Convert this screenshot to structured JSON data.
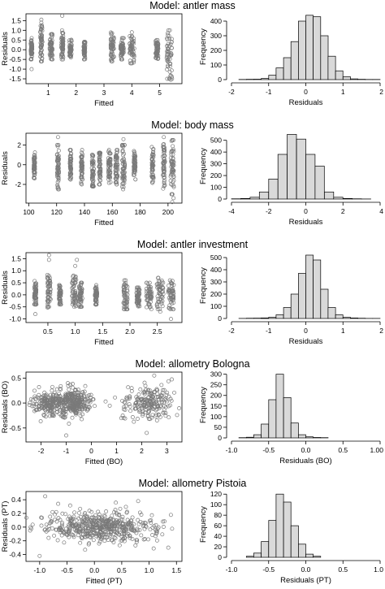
{
  "chart_data": [
    {
      "title": "Model: antler mass",
      "scatter": {
        "type": "scatter",
        "xlabel": "Fitted",
        "ylabel": "Residuals",
        "xlim": [
          0.2,
          5.8
        ],
        "ylim": [
          -1.75,
          1.85
        ],
        "xticks": [
          1,
          2,
          3,
          4,
          5
        ],
        "yticks": [
          -1.5,
          -1.0,
          -0.5,
          0.0,
          0.5,
          1.0,
          1.5
        ],
        "ytick_labels": [
          "-1.5",
          "-1.0",
          "-0.5",
          "0.0",
          "0.5",
          "1.0",
          "1.5"
        ],
        "clusters": [
          {
            "x": 0.4,
            "spread": 0.03,
            "ymin": -0.5,
            "ymax": 0.6
          },
          {
            "x": 0.75,
            "spread": 0.04,
            "ymin": -0.6,
            "ymax": 1.3
          },
          {
            "x": 1.1,
            "spread": 0.05,
            "ymin": -0.5,
            "ymax": 0.8
          },
          {
            "x": 1.5,
            "spread": 0.04,
            "ymin": -0.5,
            "ymax": 1.0
          },
          {
            "x": 1.8,
            "spread": 0.04,
            "ymin": -0.4,
            "ymax": 0.6
          },
          {
            "x": 2.3,
            "spread": 0.03,
            "ymin": -0.5,
            "ymax": 0.4
          },
          {
            "x": 3.3,
            "spread": 0.06,
            "ymin": -0.6,
            "ymax": 0.9
          },
          {
            "x": 3.65,
            "spread": 0.06,
            "ymin": -0.5,
            "ymax": 0.6
          },
          {
            "x": 4.0,
            "spread": 0.09,
            "ymin": -0.7,
            "ymax": 0.7
          },
          {
            "x": 4.9,
            "spread": 0.05,
            "ymin": -0.5,
            "ymax": 0.5
          },
          {
            "x": 5.35,
            "spread": 0.1,
            "ymin": -1.5,
            "ymax": 1.0
          }
        ],
        "outliers": [
          [
            1.5,
            1.75
          ],
          [
            0.75,
            1.4
          ],
          [
            0.75,
            1.55
          ],
          [
            5.4,
            -1.55
          ],
          [
            4.0,
            0.9
          ],
          [
            0.4,
            -1.0
          ]
        ]
      },
      "histogram": {
        "type": "bar",
        "xlabel": "Residuals",
        "ylabel": "Frequency",
        "xlim": [
          -2,
          2
        ],
        "ylim": [
          0,
          450
        ],
        "xticks": [
          -2,
          -1,
          0,
          1,
          2
        ],
        "yticks": [
          0,
          100,
          200,
          300,
          400
        ],
        "bin_start": -2.0,
        "bin_width": 0.2,
        "values": [
          0,
          1,
          2,
          3,
          8,
          30,
          80,
          150,
          260,
          400,
          440,
          430,
          300,
          160,
          60,
          20,
          5,
          2,
          1,
          1
        ]
      }
    },
    {
      "title": "Model: body mass",
      "scatter": {
        "type": "scatter",
        "xlabel": "Fitted",
        "ylabel": "Residuals",
        "xlim": [
          98,
          210
        ],
        "ylim": [
          -3.9,
          3.2
        ],
        "xticks": [
          100,
          120,
          140,
          160,
          180,
          200
        ],
        "yticks": [
          -2,
          0,
          2
        ],
        "ytick_labels": [
          "-2",
          "0",
          "2"
        ],
        "clusters": [
          {
            "x": 104,
            "spread": 0.5,
            "ymin": -1.5,
            "ymax": 1.5
          },
          {
            "x": 121,
            "spread": 0.7,
            "ymin": -2.5,
            "ymax": 2.0
          },
          {
            "x": 130,
            "spread": 0.5,
            "ymin": -1.5,
            "ymax": 1.5
          },
          {
            "x": 138,
            "spread": 0.6,
            "ymin": -2.0,
            "ymax": 1.5
          },
          {
            "x": 146,
            "spread": 0.7,
            "ymin": -2.2,
            "ymax": 1.0
          },
          {
            "x": 151,
            "spread": 0.6,
            "ymin": -2.0,
            "ymax": 1.2
          },
          {
            "x": 158,
            "spread": 0.9,
            "ymin": -2.0,
            "ymax": 1.5
          },
          {
            "x": 163,
            "spread": 0.8,
            "ymin": -2.0,
            "ymax": 1.5
          },
          {
            "x": 168,
            "spread": 1.0,
            "ymin": -2.5,
            "ymax": 2.0
          },
          {
            "x": 176,
            "spread": 0.7,
            "ymin": -1.5,
            "ymax": 1.5
          },
          {
            "x": 189,
            "spread": 0.7,
            "ymin": -2.0,
            "ymax": 1.8
          },
          {
            "x": 197,
            "spread": 0.8,
            "ymin": -2.5,
            "ymax": 2.5
          },
          {
            "x": 203,
            "spread": 1.2,
            "ymin": -3.0,
            "ymax": 2.5
          }
        ],
        "outliers": [
          [
            121,
            2.8
          ],
          [
            203,
            -3.8
          ],
          [
            204,
            -3.4
          ],
          [
            168,
            2.6
          ],
          [
            197,
            2.8
          ]
        ]
      },
      "histogram": {
        "type": "bar",
        "xlabel": "Residuals",
        "ylabel": "Frequency",
        "xlim": [
          -4,
          4
        ],
        "ylim": [
          0,
          560
        ],
        "xticks": [
          -4,
          -2,
          0,
          2,
          4
        ],
        "yticks": [
          0,
          100,
          200,
          300,
          400,
          500
        ],
        "bin_start": -4.0,
        "bin_width": 0.5,
        "values": [
          2,
          5,
          15,
          60,
          170,
          380,
          550,
          510,
          380,
          280,
          60,
          15,
          5,
          2,
          1,
          0
        ]
      }
    },
    {
      "title": "Model: antler investment",
      "scatter": {
        "type": "scatter",
        "xlabel": "Fitted",
        "ylabel": "Residuals",
        "xlim": [
          0.1,
          2.95
        ],
        "ylim": [
          -1.15,
          1.75
        ],
        "xticks": [
          0.5,
          1.0,
          1.5,
          2.0,
          2.5
        ],
        "yticks": [
          -1.0,
          -0.5,
          0.0,
          0.5,
          1.0,
          1.5
        ],
        "ytick_labels": [
          "-1.0",
          "-0.5",
          "0.0",
          "0.5",
          "1.0",
          "1.5"
        ],
        "clusters": [
          {
            "x": 0.27,
            "spread": 0.02,
            "ymin": -0.4,
            "ymax": 0.6
          },
          {
            "x": 0.52,
            "spread": 0.03,
            "ymin": -0.6,
            "ymax": 0.9
          },
          {
            "x": 0.72,
            "spread": 0.02,
            "ymin": -0.4,
            "ymax": 0.4
          },
          {
            "x": 0.98,
            "spread": 0.04,
            "ymin": -0.5,
            "ymax": 0.8
          },
          {
            "x": 1.1,
            "spread": 0.03,
            "ymin": -0.5,
            "ymax": 0.5
          },
          {
            "x": 1.38,
            "spread": 0.02,
            "ymin": -0.4,
            "ymax": 0.4
          },
          {
            "x": 1.92,
            "spread": 0.04,
            "ymin": -0.6,
            "ymax": 0.6
          },
          {
            "x": 2.15,
            "spread": 0.03,
            "ymin": -0.5,
            "ymax": 0.3
          },
          {
            "x": 2.35,
            "spread": 0.05,
            "ymin": -0.6,
            "ymax": 0.5
          },
          {
            "x": 2.55,
            "spread": 0.06,
            "ymin": -0.7,
            "ymax": 0.7
          },
          {
            "x": 2.75,
            "spread": 0.05,
            "ymin": -0.6,
            "ymax": 0.6
          }
        ],
        "outliers": [
          [
            0.52,
            1.65
          ],
          [
            0.52,
            1.45
          ],
          [
            1.03,
            1.45
          ],
          [
            1.0,
            1.2
          ],
          [
            0.27,
            -0.8
          ],
          [
            2.75,
            -1.0
          ]
        ]
      },
      "histogram": {
        "type": "bar",
        "xlabel": "Residuals",
        "ylabel": "Frequency",
        "xlim": [
          -2,
          2
        ],
        "ylim": [
          0,
          540
        ],
        "xticks": [
          -2,
          -1,
          0,
          1,
          2
        ],
        "yticks": [
          0,
          100,
          200,
          300,
          400,
          500
        ],
        "bin_start": -2.0,
        "bin_width": 0.2,
        "values": [
          0,
          1,
          2,
          3,
          5,
          10,
          30,
          90,
          200,
          370,
          520,
          480,
          240,
          90,
          30,
          10,
          4,
          2,
          1,
          1
        ]
      }
    },
    {
      "title": "Model: allometry Bologna",
      "scatter": {
        "type": "scatter",
        "xlabel": "Fitted (BO)",
        "ylabel": "Residuals (BO)",
        "xlim": [
          -2.6,
          3.6
        ],
        "ylim": [
          -0.78,
          0.62
        ],
        "xticks": [
          -2,
          -1,
          0,
          1,
          2,
          3
        ],
        "yticks": [
          -0.5,
          0.0,
          0.5
        ],
        "ytick_labels": [
          "-0.5",
          "0.0",
          "0.5"
        ],
        "blobs": [
          {
            "cx": -1.75,
            "cy": 0.0,
            "sx": 0.3,
            "sy": 0.12,
            "n": 160
          },
          {
            "cx": -0.75,
            "cy": 0.0,
            "sx": 0.35,
            "sy": 0.14,
            "n": 300
          },
          {
            "cx": 2.3,
            "cy": 0.0,
            "sx": 0.5,
            "sy": 0.17,
            "n": 200
          }
        ],
        "outliers": [
          [
            -1.0,
            -0.65
          ],
          [
            2.5,
            0.55
          ],
          [
            2.2,
            -0.6
          ],
          [
            1.6,
            0.3
          ]
        ]
      },
      "histogram": {
        "type": "bar",
        "xlabel": "Residuals (BO)",
        "ylabel": "Frequency",
        "xlim": [
          -1.0,
          1.0
        ],
        "ylim": [
          0,
          310
        ],
        "xticks": [
          -1.0,
          -0.5,
          0.0,
          0.5,
          1.0
        ],
        "yticks": [
          0,
          50,
          100,
          150,
          200,
          250,
          300
        ],
        "xtick_labels": [
          "-1.0",
          "-0.5",
          "0.0",
          "0.5",
          "1.00"
        ],
        "bin_start": -1.0,
        "bin_width": 0.1,
        "values": [
          0,
          1,
          3,
          15,
          65,
          180,
          300,
          190,
          70,
          15,
          5,
          2,
          1,
          0,
          0,
          0,
          0,
          0,
          0,
          0
        ]
      }
    },
    {
      "title": "Model: allometry Pistoia",
      "scatter": {
        "type": "scatter",
        "xlabel": "Fitted (PT)",
        "ylabel": "Residuals (PT)",
        "xlim": [
          -1.25,
          1.6
        ],
        "ylim": [
          -0.5,
          0.52
        ],
        "xticks": [
          -1.0,
          -0.5,
          0.0,
          0.5,
          1.0,
          1.5
        ],
        "yticks": [
          -0.4,
          -0.2,
          0.0,
          0.2,
          0.4
        ],
        "ytick_labels": [
          "-0.4",
          "-0.2",
          "0.0",
          "0.2",
          "0.4"
        ],
        "blobs": [
          {
            "cx": 0.1,
            "cy": 0.0,
            "sx": 0.5,
            "sy": 0.11,
            "n": 520
          }
        ],
        "outliers": [
          [
            -0.9,
            0.45
          ],
          [
            1.35,
            -0.3
          ],
          [
            -1.0,
            -0.42
          ],
          [
            0.8,
            0.38
          ]
        ]
      },
      "histogram": {
        "type": "bar",
        "xlabel": "Residuals (PT)",
        "ylabel": "Frequency",
        "xlim": [
          -1.0,
          1.0
        ],
        "ylim": [
          0,
          125
        ],
        "xticks": [
          -1.0,
          -0.5,
          0.0,
          0.5,
          1.0
        ],
        "yticks": [
          0,
          20,
          40,
          60,
          80,
          100,
          120
        ],
        "bin_start": -1.0,
        "bin_width": 0.1,
        "values": [
          0,
          0,
          2,
          8,
          30,
          70,
          120,
          105,
          60,
          25,
          6,
          2,
          0,
          0,
          0,
          0,
          0,
          0,
          0,
          0
        ]
      }
    }
  ],
  "colors": {
    "points": "#7a7a7a",
    "bar_fill": "#d9d9d9",
    "bar_stroke": "#000000",
    "axes": "#000000"
  }
}
